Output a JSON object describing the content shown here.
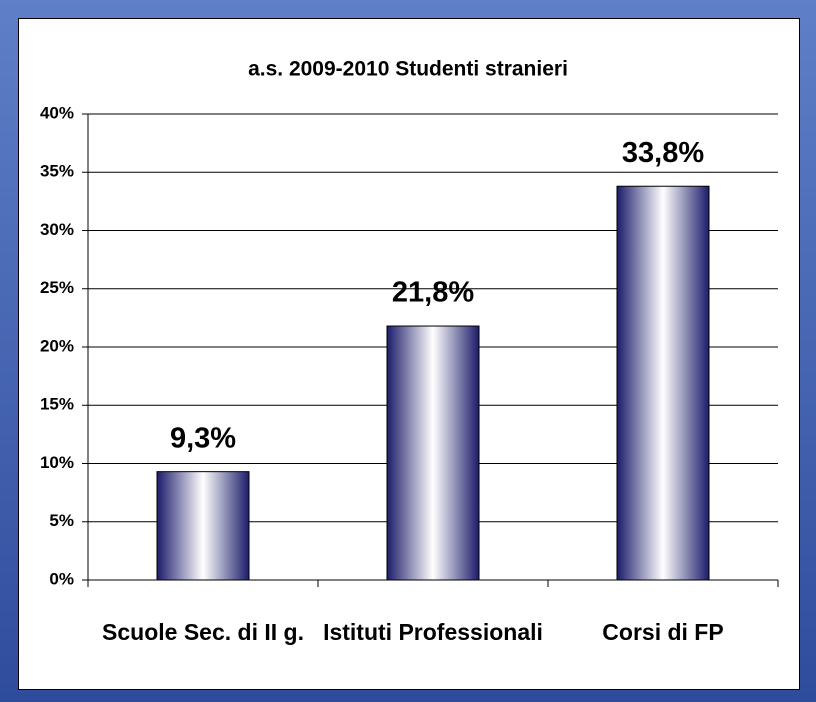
{
  "chart_data": {
    "type": "bar",
    "title": "a.s. 2009-2010 Studenti stranieri",
    "categories": [
      "Scuole Sec. di II g.",
      "Istituti Professionali",
      "Corsi di FP"
    ],
    "values": [
      9.3,
      21.8,
      33.8
    ],
    "value_labels": [
      "9,3%",
      "21,8%",
      "33,8%"
    ],
    "color": "#1c1c6b",
    "ylim": [
      0,
      40
    ],
    "yticks": [
      {
        "value": 0,
        "label": "0%"
      },
      {
        "value": 5,
        "label": "5%"
      },
      {
        "value": 10,
        "label": "10%"
      },
      {
        "value": 15,
        "label": "15%"
      },
      {
        "value": 20,
        "label": "20%"
      },
      {
        "value": 25,
        "label": "25%"
      },
      {
        "value": 30,
        "label": "30%"
      },
      {
        "value": 35,
        "label": "35%"
      },
      {
        "value": 40,
        "label": "40%"
      }
    ],
    "grid": true
  }
}
